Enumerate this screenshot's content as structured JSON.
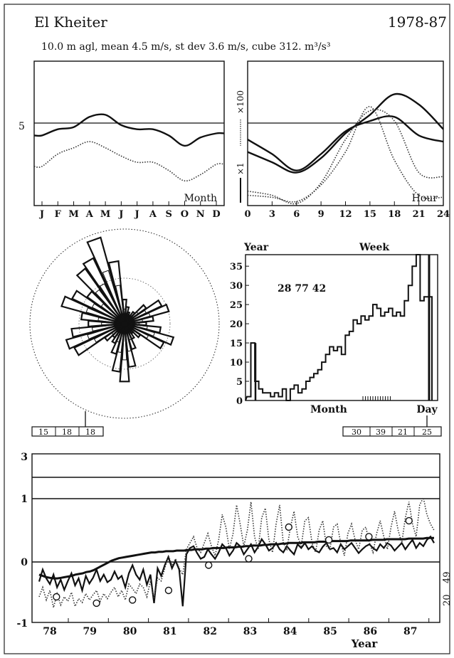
{
  "header": {
    "station": "El Kheiter",
    "period": "1978-87",
    "stats_line": "10.0 m agl, mean  4.5 m/s, st dev  3.6 m/s, cube  312. m³/s³"
  },
  "chart_data": [
    {
      "type": "line",
      "panel": "monthly",
      "corner_label": "Month",
      "categories": [
        "J",
        "F",
        "M",
        "A",
        "M",
        "J",
        "J",
        "A",
        "S",
        "O",
        "N",
        "D"
      ],
      "y_tick_label": "5",
      "ylim": [
        1,
        8
      ],
      "reference_line": 5,
      "series": [
        {
          "style": "solid",
          "values": [
            4.4,
            4.7,
            4.8,
            5.3,
            5.4,
            4.9,
            4.7,
            4.7,
            4.4,
            3.9,
            4.3,
            4.5
          ]
        },
        {
          "style": "dotted",
          "values": [
            2.9,
            3.5,
            3.8,
            4.1,
            3.8,
            3.4,
            3.1,
            3.1,
            2.7,
            2.2,
            2.5,
            3.0
          ]
        }
      ]
    },
    {
      "type": "line",
      "panel": "diurnal",
      "corner_label": "Hour",
      "x_ticks": [
        "0",
        "3",
        "6",
        "9",
        "12",
        "15",
        "18",
        "21",
        "24"
      ],
      "right_axis_labels": [
        "×100",
        "×1"
      ],
      "ylim": [
        1,
        8
      ],
      "reference_line": 5,
      "series": [
        {
          "style": "solid",
          "x": [
            0,
            3,
            6,
            9,
            12,
            15,
            18,
            21,
            24
          ],
          "values": [
            3.6,
            3.1,
            2.6,
            3.3,
            4.5,
            5.4,
            6.4,
            5.9,
            4.7
          ]
        },
        {
          "style": "solid",
          "x": [
            0,
            3,
            6,
            9,
            12,
            15,
            18,
            21,
            24
          ],
          "values": [
            4.2,
            3.5,
            2.7,
            3.5,
            4.6,
            5.1,
            5.3,
            4.4,
            4.1
          ]
        },
        {
          "style": "dotted",
          "x": [
            0,
            3,
            6,
            9,
            12,
            15,
            18,
            21,
            24
          ],
          "values": [
            1.7,
            1.5,
            1.1,
            2.1,
            4.2,
            5.6,
            5.1,
            2.6,
            2.4
          ]
        },
        {
          "style": "dotted",
          "x": [
            0,
            3,
            6,
            9,
            12,
            15,
            18,
            21,
            24
          ],
          "values": [
            1.5,
            1.4,
            1.2,
            2.0,
            3.6,
            5.8,
            3.2,
            1.5,
            1.4
          ]
        }
      ]
    },
    {
      "type": "rose",
      "panel": "direction",
      "sectors": 36,
      "outer": [
        20,
        14,
        10,
        8,
        12,
        22,
        34,
        38,
        24,
        18,
        30,
        42,
        36,
        16,
        10,
        14,
        22,
        36,
        48,
        40,
        26,
        18,
        14,
        20,
        46,
        50,
        44,
        30,
        36,
        54,
        48,
        38,
        56,
        60,
        74,
        52
      ],
      "inner": [
        12,
        9,
        7,
        6,
        8,
        14,
        20,
        22,
        15,
        12,
        19,
        26,
        22,
        10,
        7,
        9,
        14,
        23,
        30,
        24,
        16,
        11,
        9,
        13,
        28,
        32,
        27,
        19,
        22,
        33,
        30,
        24,
        35,
        37,
        46,
        32
      ],
      "speed_boxes": [
        "15",
        "18",
        "18"
      ]
    },
    {
      "type": "bar",
      "panel": "histogram",
      "left_title": "Year",
      "right_title": "Week",
      "x_label": "Month",
      "right_x_label": "Day",
      "y_ticks": [
        "0",
        "5",
        "10",
        "15",
        "20",
        "25",
        "30",
        "35"
      ],
      "ylim": [
        0,
        38
      ],
      "annotation": "28  77  42",
      "values": [
        1,
        15,
        5,
        3,
        2,
        2,
        1,
        2,
        1,
        3,
        0,
        3,
        4,
        2,
        3,
        5,
        6,
        7,
        8,
        10,
        12,
        14,
        13,
        14,
        12,
        17,
        18,
        21,
        20,
        22,
        21,
        22,
        25,
        24,
        22,
        23,
        24,
        22,
        23,
        22,
        26,
        30,
        35,
        38,
        26,
        27,
        27
      ],
      "day_boxes": [
        "30",
        "39",
        "21",
        "25"
      ]
    },
    {
      "type": "line",
      "panel": "yearly",
      "x_label": "Year",
      "x_ticks": [
        "78",
        "79",
        "80",
        "81",
        "82",
        "83",
        "84",
        "85",
        "86",
        "87"
      ],
      "y_ticks": [
        "-1",
        "0",
        "1",
        "3"
      ],
      "right_labels": [
        "49",
        "20"
      ],
      "ylim": [
        -1,
        3
      ],
      "series": [
        {
          "style": "solid-thin",
          "values": [
            -0.31,
            -0.12,
            -0.26,
            -0.35,
            -0.2,
            -0.4,
            -0.28,
            -0.44,
            -0.3,
            -0.18,
            -0.37,
            -0.26,
            -0.45,
            -0.22,
            -0.34,
            -0.25,
            -0.12,
            -0.3,
            -0.2,
            -0.32,
            -0.28,
            -0.15,
            -0.27,
            -0.22,
            -0.4,
            -0.18,
            -0.05,
            -0.2,
            -0.28,
            -0.12,
            -0.36,
            -0.2,
            -0.65,
            -0.1,
            -0.22,
            -0.05,
            0.08,
            -0.1,
            0.02,
            -0.12,
            -0.7,
            0.12,
            0.22,
            0.25,
            0.14,
            0.05,
            0.08,
            0.2,
            0.12,
            0.05,
            0.15,
            0.28,
            0.22,
            0.1,
            0.18,
            0.3,
            0.25,
            0.12,
            0.2,
            0.28,
            0.15,
            0.24,
            0.36,
            0.28,
            0.18,
            0.22,
            0.3,
            0.2,
            0.15,
            0.25,
            0.18,
            0.12,
            0.28,
            0.22,
            0.3,
            0.2,
            0.25,
            0.18,
            0.15,
            0.24,
            0.3,
            0.2,
            0.22,
            0.15,
            0.28,
            0.2,
            0.25,
            0.3,
            0.22,
            0.14,
            0.2,
            0.25,
            0.28,
            0.22,
            0.18,
            0.28,
            0.22,
            0.3,
            0.26,
            0.18,
            0.24,
            0.3,
            0.2,
            0.28,
            0.35,
            0.22,
            0.3,
            0.25,
            0.35,
            0.4,
            0.3
          ]
        },
        {
          "style": "dotted",
          "values": [
            -0.55,
            -0.4,
            -0.6,
            -0.45,
            -0.72,
            -0.5,
            -0.68,
            -0.55,
            -0.62,
            -0.48,
            -0.7,
            -0.58,
            -0.64,
            -0.5,
            -0.6,
            -0.52,
            -0.45,
            -0.62,
            -0.5,
            -0.58,
            -0.48,
            -0.4,
            -0.55,
            -0.45,
            -0.6,
            -0.35,
            -0.42,
            -0.5,
            -0.35,
            -0.4,
            -0.55,
            -0.3,
            -0.58,
            -0.25,
            -0.3,
            -0.1,
            0.1,
            -0.05,
            0.05,
            -0.1,
            -0.2,
            0.2,
            0.3,
            0.4,
            0.22,
            0.15,
            0.3,
            0.45,
            0.25,
            0.1,
            0.35,
            0.75,
            0.55,
            0.2,
            0.45,
            0.9,
            0.6,
            0.25,
            0.5,
            0.95,
            0.4,
            0.2,
            0.7,
            0.85,
            0.35,
            0.15,
            0.6,
            0.9,
            0.3,
            0.2,
            0.55,
            0.8,
            0.4,
            0.25,
            0.65,
            0.7,
            0.3,
            0.15,
            0.5,
            0.65,
            0.25,
            0.2,
            0.55,
            0.6,
            0.3,
            0.1,
            0.45,
            0.6,
            0.35,
            0.2,
            0.5,
            0.55,
            0.3,
            0.15,
            0.45,
            0.65,
            0.4,
            0.2,
            0.55,
            0.8,
            0.5,
            0.3,
            0.7,
            0.95,
            0.6,
            0.4,
            0.9,
            1.05,
            0.75,
            0.6,
            0.5
          ]
        },
        {
          "style": "solid-thick",
          "values": [
            -0.2,
            -0.22,
            -0.24,
            -0.25,
            -0.26,
            -0.26,
            -0.25,
            -0.24,
            -0.23,
            -0.22,
            -0.2,
            -0.19,
            -0.18,
            -0.16,
            -0.15,
            -0.13,
            -0.1,
            -0.07,
            -0.04,
            -0.01,
            0.02,
            0.04,
            0.06,
            0.07,
            0.08,
            0.09,
            0.1,
            0.11,
            0.12,
            0.13,
            0.14,
            0.15,
            0.15,
            0.16,
            0.16,
            0.17,
            0.17,
            0.17,
            0.18,
            0.18,
            0.18,
            0.19,
            0.19,
            0.2,
            0.2,
            0.2,
            0.21,
            0.21,
            0.22,
            0.22,
            0.22,
            0.22,
            0.23,
            0.23,
            0.23,
            0.24,
            0.24,
            0.25,
            0.25,
            0.26,
            0.26,
            0.26,
            0.27,
            0.27,
            0.28,
            0.28,
            0.28,
            0.29,
            0.29,
            0.3,
            0.3,
            0.3,
            0.3,
            0.31,
            0.31,
            0.31,
            0.31,
            0.32,
            0.32,
            0.32,
            0.32,
            0.33,
            0.33,
            0.33,
            0.33,
            0.33,
            0.34,
            0.34,
            0.34,
            0.34,
            0.34,
            0.34,
            0.35,
            0.35,
            0.35,
            0.35,
            0.36,
            0.36,
            0.36,
            0.36,
            0.36,
            0.36,
            0.37,
            0.37,
            0.37,
            0.37,
            0.37,
            0.38,
            0.38,
            0.38
          ]
        },
        {
          "style": "circles",
          "x": [
            78.2,
            79.2,
            80.1,
            81.0,
            82.0,
            83.0,
            84.0,
            85.0,
            86.0,
            87.0
          ],
          "values": [
            -0.55,
            -0.65,
            -0.6,
            -0.45,
            -0.05,
            0.05,
            0.55,
            0.35,
            0.4,
            0.65
          ]
        }
      ]
    }
  ]
}
